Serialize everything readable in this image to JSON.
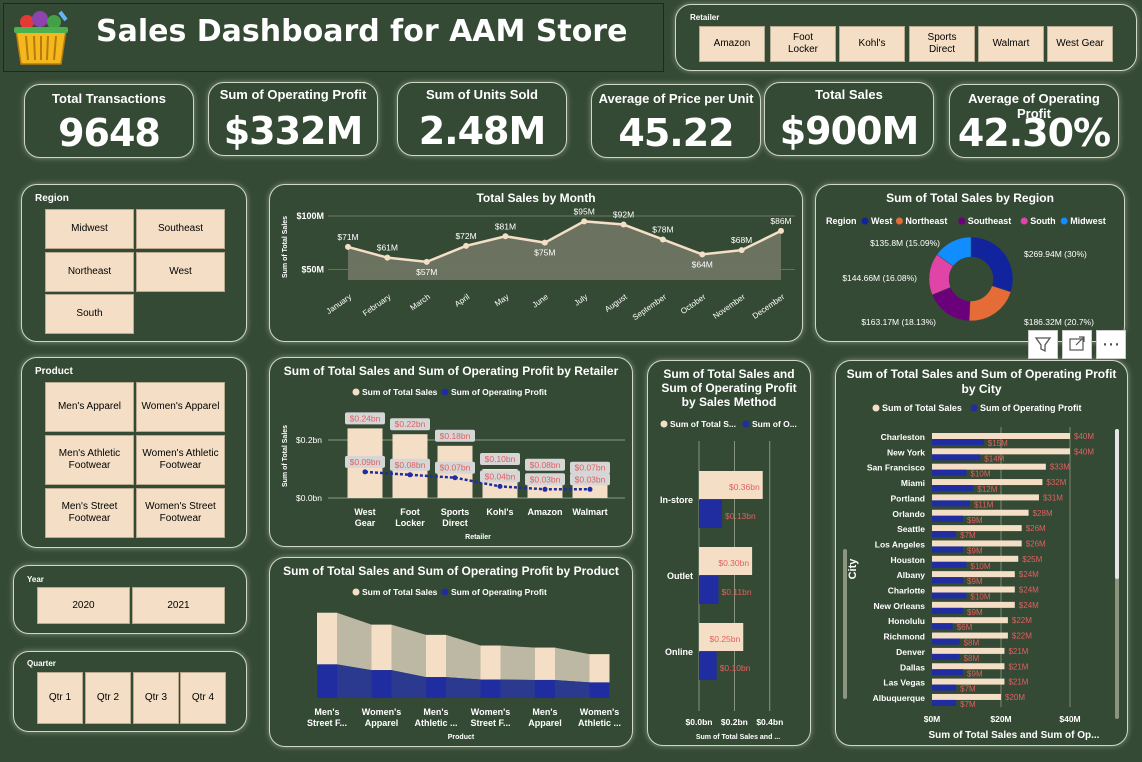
{
  "header": {
    "title": "Sales Dashboard for AAM Store"
  },
  "retailer_slicer": {
    "title": "Retailer",
    "options": [
      "Amazon",
      "Foot Locker",
      "Kohl's",
      "Sports Direct",
      "Walmart",
      "West Gear"
    ]
  },
  "kpis": [
    {
      "title": "Total Transactions",
      "value": "9648"
    },
    {
      "title": "Sum of Operating Profit",
      "value": "$332M"
    },
    {
      "title": "Sum of Units Sold",
      "value": "2.48M"
    },
    {
      "title": "Average of Price per Unit",
      "value": "45.22"
    },
    {
      "title": "Total Sales",
      "value": "$900M"
    },
    {
      "title": "Average of Operating Profit",
      "value": "42.30%"
    }
  ],
  "region_slicer": {
    "title": "Region",
    "options": [
      "Midwest",
      "Southeast",
      "Northeast",
      "West",
      "South"
    ]
  },
  "product_slicer": {
    "title": "Product",
    "options": [
      "Men's Apparel",
      "Women's Apparel",
      "Men's Athletic Footwear",
      "Women's Athletic Footwear",
      "Men's Street Footwear",
      "Women's Street Footwear"
    ]
  },
  "year_slicer": {
    "title": "Year",
    "options": [
      "2020",
      "2021"
    ]
  },
  "quarter_slicer": {
    "title": "Quarter",
    "options": [
      "Qtr 1",
      "Qtr 2",
      "Qtr 3",
      "Qtr 4"
    ]
  },
  "visual_toolbar": {
    "filter_icon": "filter-icon",
    "focus_icon": "focus-mode-icon",
    "more_icon": "more-options-icon",
    "more_label": "⋯"
  },
  "colors": {
    "background": "#354a35",
    "cream": "#f4dfc6",
    "navy": "#1f2da0",
    "area": "#6f7462",
    "label_red": "#e06060"
  },
  "chart_data": [
    {
      "id": "monthly",
      "type": "area",
      "title": "Total Sales by Month",
      "ylabel": "Sum of Total Sales",
      "categories": [
        "January",
        "February",
        "March",
        "April",
        "May",
        "June",
        "July",
        "August",
        "September",
        "October",
        "November",
        "December"
      ],
      "values": [
        71,
        61,
        57,
        72,
        81,
        75,
        95,
        92,
        78,
        64,
        68,
        86
      ],
      "labels": [
        "$71M",
        "$61M",
        "$57M",
        "$72M",
        "$81M",
        "$75M",
        "$95M",
        "$92M",
        "$78M",
        "$64M",
        "$68M",
        "$86M"
      ],
      "yticks": [
        "$100M",
        "$50M"
      ],
      "ytick_values": [
        100,
        50
      ],
      "ylim": [
        40,
        100
      ]
    },
    {
      "id": "region",
      "type": "pie",
      "title": "Sum of Total Sales by Region",
      "legend_title": "Region",
      "categories": [
        "West",
        "Northeast",
        "Southeast",
        "South",
        "Midwest"
      ],
      "values": [
        269.94,
        186.32,
        163.17,
        144.66,
        135.8
      ],
      "labels": [
        "$269.94M (30%)",
        "$186.32M (20.7%)",
        "$163.17M (18.13%)",
        "$144.66M (16.08%)",
        "$135.8M (15.09%)"
      ],
      "colors": [
        "#12239e",
        "#e66c37",
        "#6b007b",
        "#e044a7",
        "#118dff"
      ]
    },
    {
      "id": "retailer",
      "type": "bar",
      "title": "Sum of Total Sales and Sum of Operating Profit by Retailer",
      "xlabel": "Retailer",
      "ylabel": "Sum of Total Sales",
      "categories": [
        "West Gear",
        "Foot Locker",
        "Sports Direct",
        "Kohl's",
        "Amazon",
        "Walmart"
      ],
      "yticks": [
        "$0.2bn",
        "$0.0bn"
      ],
      "series": [
        {
          "name": "Sum of Total Sales",
          "values": [
            0.24,
            0.22,
            0.18,
            0.1,
            0.08,
            0.07
          ],
          "labels": [
            "$0.24bn",
            "$0.22bn",
            "$0.18bn",
            "$0.10bn",
            "$0.08bn",
            "$0.07bn"
          ]
        },
        {
          "name": "Sum of Operating Profit",
          "values": [
            0.09,
            0.08,
            0.07,
            0.04,
            0.03,
            0.03
          ],
          "labels": [
            "$0.09bn",
            "$0.08bn",
            "$0.07bn",
            "$0.04bn",
            "$0.03bn",
            "$0.03bn"
          ]
        }
      ]
    },
    {
      "id": "product",
      "type": "bar",
      "title": "Sum of Total Sales and Sum of Operating Profit by Product",
      "xlabel": "Product",
      "categories": [
        "Men's Street F...",
        "Women's Apparel",
        "Men's Athletic ...",
        "Women's Street F...",
        "Men's Apparel",
        "Women's Athletic ..."
      ],
      "series": [
        {
          "name": "Sum of Total Sales",
          "values": [
            208,
            179,
            154,
            128,
            123,
            107
          ]
        },
        {
          "name": "Sum of Operating Profit",
          "values": [
            82,
            68,
            51,
            45,
            44,
            38
          ]
        }
      ]
    },
    {
      "id": "method",
      "type": "bar",
      "title": "Sum of Total Sales and Sum of Operating Profit by Sales Method",
      "xlabel": "Sum of Total Sales and ...",
      "categories": [
        "In-store",
        "Outlet",
        "Online"
      ],
      "xticks": [
        "$0.0bn",
        "$0.2bn",
        "$0.4bn"
      ],
      "series": [
        {
          "name": "Sum of Total S...",
          "values": [
            0.36,
            0.3,
            0.25
          ],
          "labels": [
            "$0.36bn",
            "$0.30bn",
            "$0.25bn"
          ]
        },
        {
          "name": "Sum of O...",
          "values": [
            0.13,
            0.11,
            0.1
          ],
          "labels": [
            "$0.13bn",
            "$0.11bn",
            "$0.10bn"
          ]
        }
      ]
    },
    {
      "id": "city",
      "type": "bar",
      "title": "Sum of Total Sales and Sum of Operating Profit by City",
      "xlabel": "Sum of Total Sales and Sum of Op...",
      "ylabel": "City",
      "categories": [
        "Charleston",
        "New York",
        "San Francisco",
        "Miami",
        "Portland",
        "Orlando",
        "Seattle",
        "Los Angeles",
        "Houston",
        "Albany",
        "Charlotte",
        "New Orleans",
        "Honolulu",
        "Richmond",
        "Denver",
        "Dallas",
        "Las Vegas",
        "Albuquerque"
      ],
      "xticks": [
        "$0M",
        "$20M",
        "$40M"
      ],
      "series": [
        {
          "name": "Sum of Total Sales",
          "values": [
            40,
            40,
            33,
            32,
            31,
            28,
            26,
            26,
            25,
            24,
            24,
            24,
            22,
            22,
            21,
            21,
            21,
            20
          ],
          "labels": [
            "$40M",
            "$40M",
            "$33M",
            "$32M",
            "$31M",
            "$28M",
            "$26M",
            "$26M",
            "$25M",
            "$24M",
            "$24M",
            "$24M",
            "$22M",
            "$22M",
            "$21M",
            "$21M",
            "$21M",
            "$20M"
          ]
        },
        {
          "name": "Sum of Operating Profit",
          "values": [
            15,
            14,
            10,
            12,
            11,
            9,
            7,
            9,
            10,
            9,
            10,
            9,
            6,
            8,
            8,
            9,
            7,
            7
          ],
          "labels": [
            "$15M",
            "$14M",
            "$10M",
            "$12M",
            "$11M",
            "$9M",
            "$7M",
            "$9M",
            "$10M",
            "$9M",
            "$10M",
            "$9M",
            "$6M",
            "$8M",
            "$8M",
            "$9M",
            "$7M",
            "$7M"
          ]
        }
      ]
    }
  ]
}
